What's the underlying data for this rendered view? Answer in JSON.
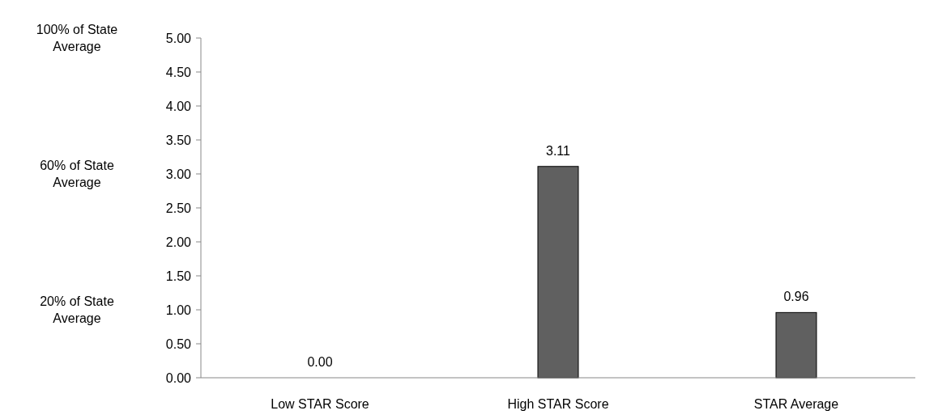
{
  "chart_data": {
    "type": "bar",
    "categories": [
      "Low STAR Score",
      "High STAR Score",
      "STAR Average"
    ],
    "values": [
      0,
      3.11,
      0.96
    ],
    "value_labels": [
      "0.00",
      "3.11",
      "0.96"
    ],
    "color": "#606060",
    "ylim": [
      0,
      5
    ],
    "yticks": [
      {
        "value": 0,
        "label": "0.00"
      },
      {
        "value": 0.5,
        "label": "0.50"
      },
      {
        "value": 1,
        "label": "1.00"
      },
      {
        "value": 1.5,
        "label": "1.50"
      },
      {
        "value": 2,
        "label": "2.00"
      },
      {
        "value": 2.5,
        "label": "2.50"
      },
      {
        "value": 3,
        "label": "3.00"
      },
      {
        "value": 3.5,
        "label": "3.50"
      },
      {
        "value": 4,
        "label": "4.00"
      },
      {
        "value": 4.5,
        "label": "4.50"
      },
      {
        "value": 5,
        "label": "5.00"
      }
    ],
    "y2lim": [
      0,
      100
    ],
    "y2ticks": [
      {
        "value": 20,
        "label": "20% of State Average"
      },
      {
        "value": 60,
        "label": "60% of State Average"
      },
      {
        "value": 100,
        "label": "100% of State Average"
      }
    ],
    "grid": false
  }
}
